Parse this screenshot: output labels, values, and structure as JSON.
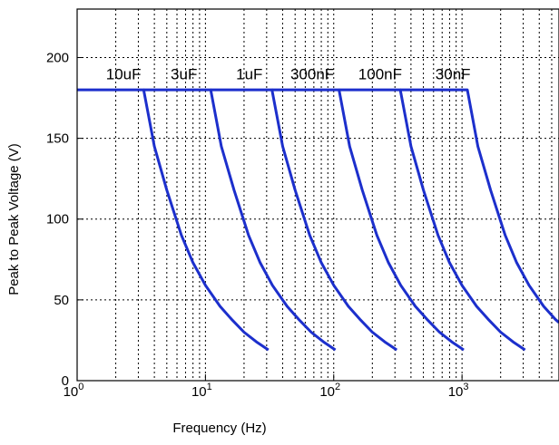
{
  "chart_data": {
    "type": "line",
    "title": "",
    "xlabel": "Frequency (Hz)",
    "ylabel": "Peak to Peak Voltage (V)",
    "xscale": "log",
    "xlim": [
      1,
      5700
    ],
    "ylim": [
      0,
      230
    ],
    "grid": true,
    "x_ticks": [
      {
        "value": 1,
        "base": "10",
        "exp": "0"
      },
      {
        "value": 10,
        "base": "10",
        "exp": "1"
      },
      {
        "value": 100,
        "base": "10",
        "exp": "2"
      },
      {
        "value": 1000,
        "base": "10",
        "exp": "3"
      }
    ],
    "y_ticks": [
      0,
      50,
      100,
      150,
      200
    ],
    "line_color": "#1c2fcc",
    "series": [
      {
        "name": "10uF",
        "label_x": 2.3,
        "label_y": 190,
        "x": [
          1,
          3.3,
          4,
          5,
          6.5,
          8,
          10,
          13,
          16,
          20,
          25,
          31
        ],
        "y": [
          180,
          180,
          145,
          118,
          90,
          73,
          59,
          46,
          38,
          30,
          24,
          19
        ]
      },
      {
        "name": "3uF",
        "label_x": 6.8,
        "label_y": 190,
        "x": [
          3.3,
          11,
          13.3,
          16.7,
          21.7,
          26.7,
          33.3,
          43.3,
          53.3,
          66.7,
          83.3,
          103
        ],
        "y": [
          180,
          180,
          145,
          118,
          90,
          73,
          59,
          46,
          38,
          30,
          24,
          19
        ]
      },
      {
        "name": "1uF",
        "label_x": 22,
        "label_y": 190,
        "x": [
          11,
          33,
          40,
          50,
          65,
          80,
          100,
          130,
          160,
          200,
          250,
          310
        ],
        "y": [
          180,
          180,
          145,
          118,
          90,
          73,
          59,
          46,
          38,
          30,
          24,
          19
        ]
      },
      {
        "name": "300nF",
        "label_x": 68,
        "label_y": 190,
        "x": [
          33,
          110,
          133,
          167,
          217,
          267,
          333,
          433,
          533,
          667,
          833,
          1030
        ],
        "y": [
          180,
          180,
          145,
          118,
          90,
          73,
          59,
          46,
          38,
          30,
          24,
          19
        ]
      },
      {
        "name": "100nF",
        "label_x": 230,
        "label_y": 190,
        "x": [
          110,
          330,
          400,
          500,
          650,
          800,
          1000,
          1300,
          1600,
          2000,
          2500,
          3100
        ],
        "y": [
          180,
          180,
          145,
          118,
          90,
          73,
          59,
          46,
          38,
          30,
          24,
          19
        ]
      },
      {
        "name": "30nF",
        "label_x": 850,
        "label_y": 190,
        "x": [
          330,
          1100,
          1330,
          1670,
          2170,
          2670,
          3330,
          4330,
          5330,
          5700
        ],
        "y": [
          180,
          180,
          145,
          118,
          90,
          73,
          59,
          46,
          38,
          36
        ]
      }
    ]
  }
}
